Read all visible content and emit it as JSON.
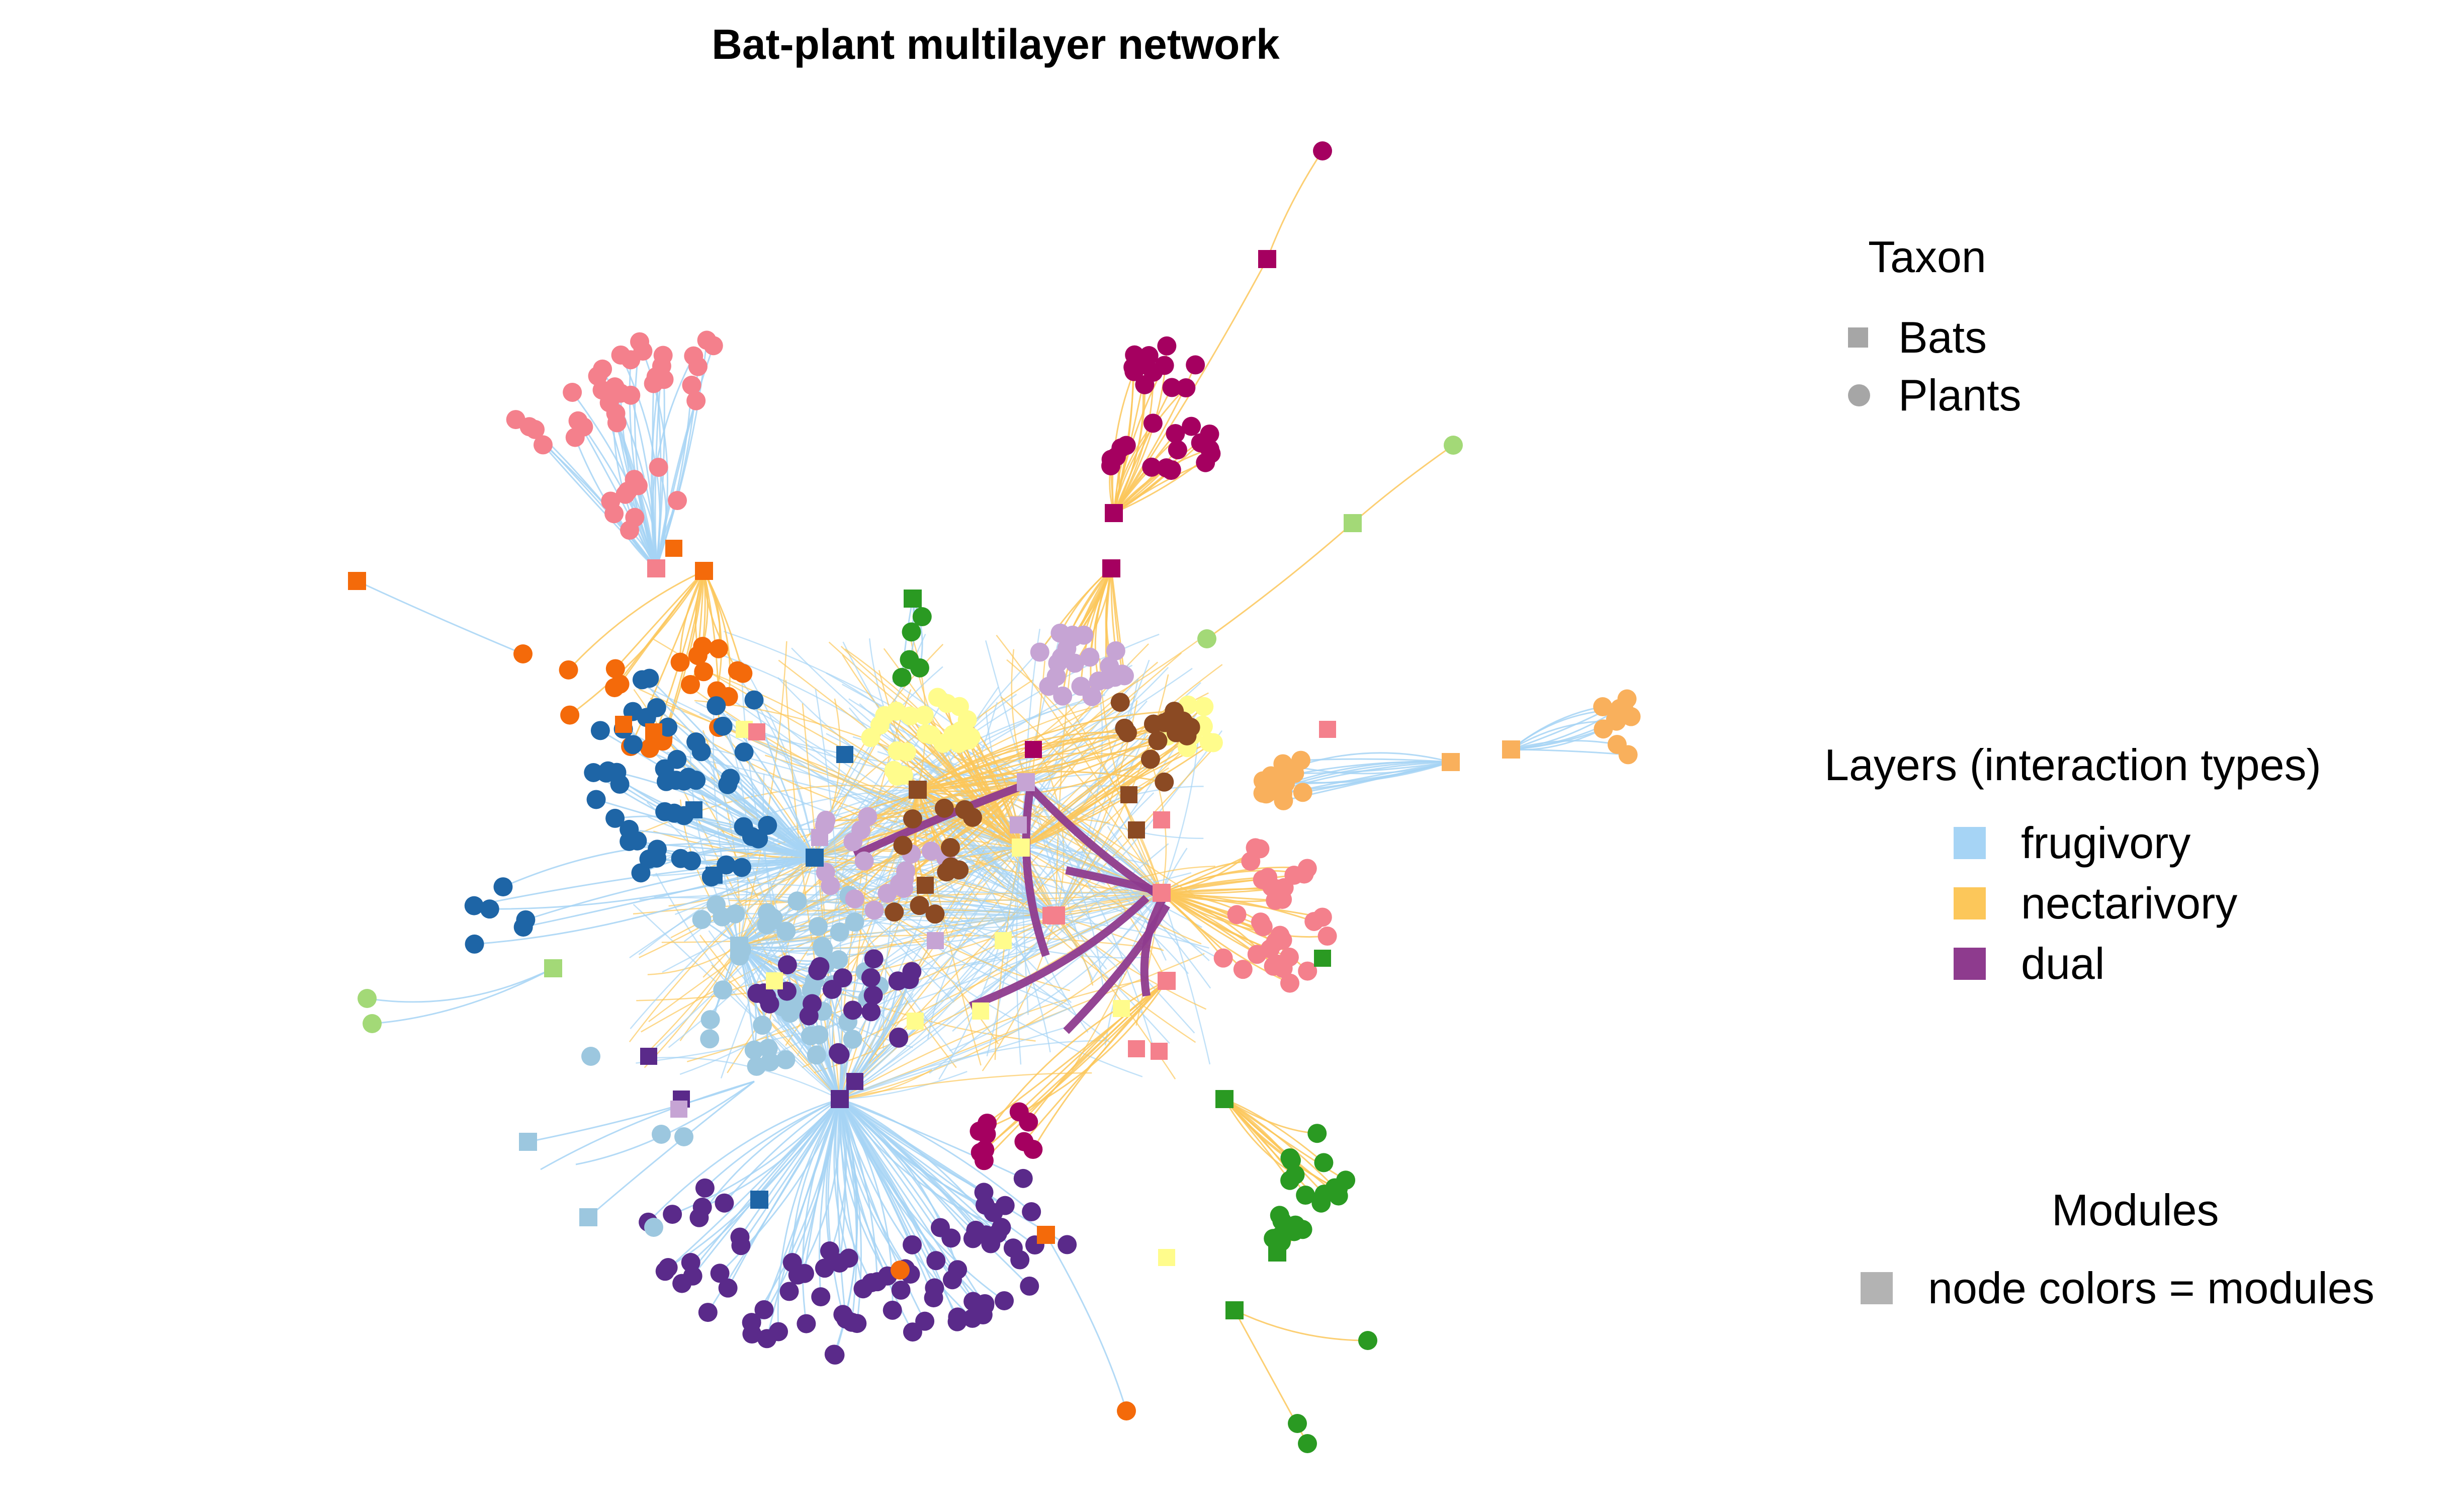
{
  "title": "Bat-plant multilayer network",
  "legend": {
    "taxon": {
      "title": "Taxon",
      "items": [
        {
          "label": "Bats",
          "shape": "square",
          "color": "#a6a6a6"
        },
        {
          "label": "Plants",
          "shape": "circle",
          "color": "#a6a6a6"
        }
      ]
    },
    "layers": {
      "title": "Layers (interaction types)",
      "items": [
        {
          "label": "frugivory",
          "color": "#a6d4f5"
        },
        {
          "label": "nectarivory",
          "color": "#fcc75a"
        },
        {
          "label": "dual",
          "color": "#8e3b8e"
        }
      ]
    },
    "modules": {
      "title": "Modules",
      "items": [
        {
          "label": "node colors = modules",
          "shape": "square",
          "color": "#b3b3b3"
        }
      ]
    }
  },
  "colors": {
    "edge_frugivory": "#a6d4f5",
    "edge_nectarivory": "#fcc75a",
    "edge_dual": "#8e3b8e",
    "modules": [
      "#f4808c",
      "#f46a0a",
      "#1e65a6",
      "#9cc7df",
      "#5a2a8a",
      "#a50060",
      "#fffc8c",
      "#c6a4d4",
      "#8b4a23",
      "#2a9a22",
      "#f9b05c",
      "#a3d977"
    ]
  }
}
